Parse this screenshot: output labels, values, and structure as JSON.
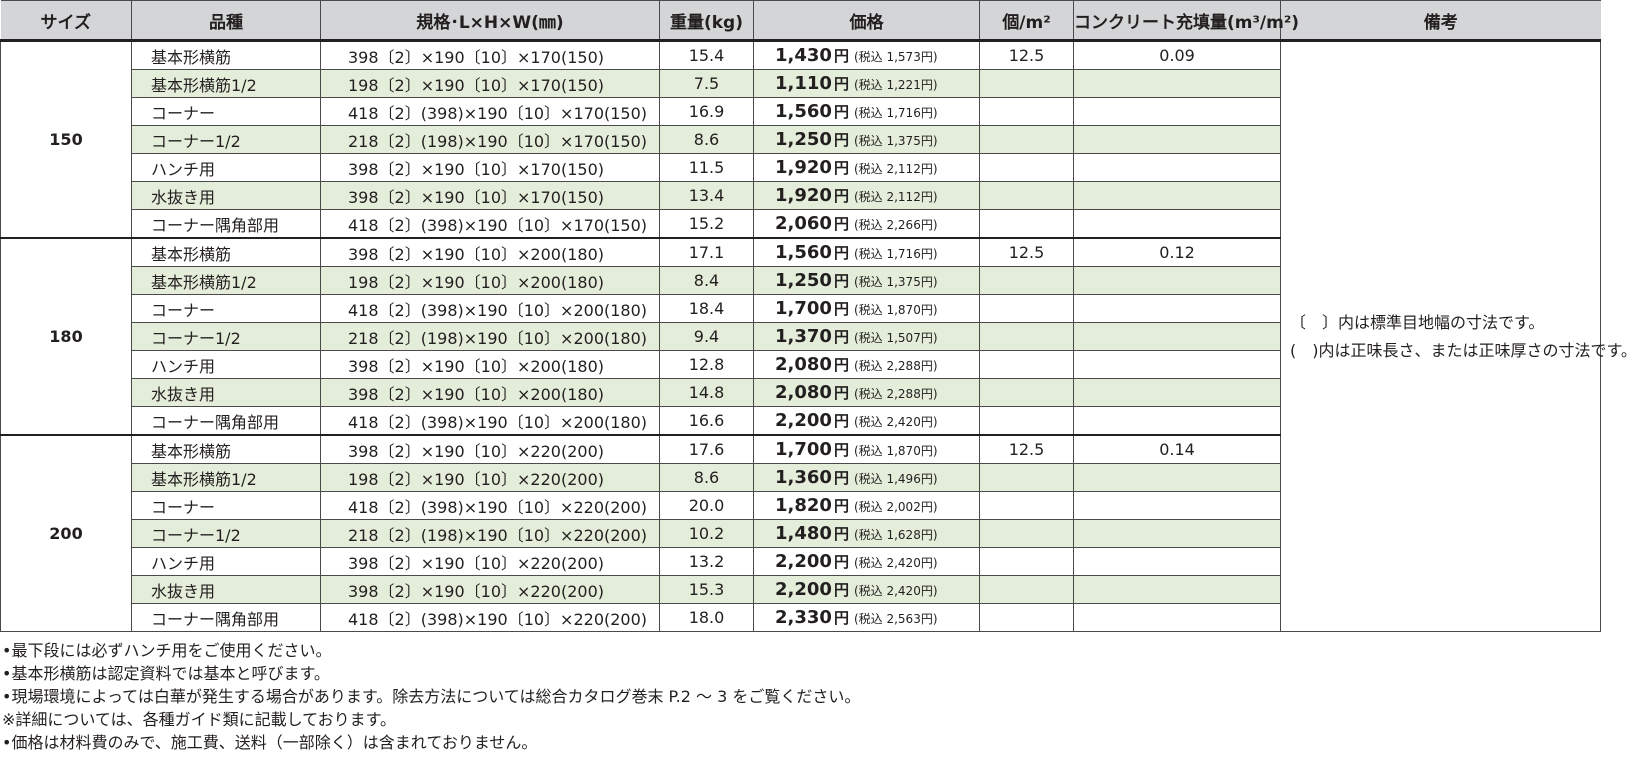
{
  "headers": {
    "size": "サイズ",
    "name": "品種",
    "spec": "規格･L×H×W(㎜)",
    "weight": "重量(kg)",
    "price": "価格",
    "per_m2": "個/m²",
    "concrete": "コンクリート充填量(m³/m²)",
    "remarks": "備考"
  },
  "currency_unit": "円",
  "tax_prefix": "(税込",
  "tax_suffix": "円)",
  "groups": [
    {
      "size": "150",
      "rows": [
        {
          "name": "基本形横筋",
          "spec": "398〔2〕×190〔10〕×170(150)",
          "weight": "15.4",
          "price": "1,430",
          "tax": "1,573",
          "per_m2": "12.5",
          "concrete": "0.09"
        },
        {
          "name": "基本形横筋1/2",
          "spec": "198〔2〕×190〔10〕×170(150)",
          "weight": "7.5",
          "price": "1,110",
          "tax": "1,221",
          "per_m2": "",
          "concrete": ""
        },
        {
          "name": "コーナー",
          "spec": "418〔2〕(398)×190〔10〕×170(150)",
          "weight": "16.9",
          "price": "1,560",
          "tax": "1,716",
          "per_m2": "",
          "concrete": ""
        },
        {
          "name": "コーナー1/2",
          "spec": "218〔2〕(198)×190〔10〕×170(150)",
          "weight": "8.6",
          "price": "1,250",
          "tax": "1,375",
          "per_m2": "",
          "concrete": ""
        },
        {
          "name": "ハンチ用",
          "spec": "398〔2〕×190〔10〕×170(150)",
          "weight": "11.5",
          "price": "1,920",
          "tax": "2,112",
          "per_m2": "",
          "concrete": ""
        },
        {
          "name": "水抜き用",
          "spec": "398〔2〕×190〔10〕×170(150)",
          "weight": "13.4",
          "price": "1,920",
          "tax": "2,112",
          "per_m2": "",
          "concrete": ""
        },
        {
          "name": "コーナー隅角部用",
          "spec": "418〔2〕(398)×190〔10〕×170(150)",
          "weight": "15.2",
          "price": "2,060",
          "tax": "2,266",
          "per_m2": "",
          "concrete": ""
        }
      ]
    },
    {
      "size": "180",
      "rows": [
        {
          "name": "基本形横筋",
          "spec": "398〔2〕×190〔10〕×200(180)",
          "weight": "17.1",
          "price": "1,560",
          "tax": "1,716",
          "per_m2": "12.5",
          "concrete": "0.12"
        },
        {
          "name": "基本形横筋1/2",
          "spec": "198〔2〕×190〔10〕×200(180)",
          "weight": "8.4",
          "price": "1,250",
          "tax": "1,375",
          "per_m2": "",
          "concrete": ""
        },
        {
          "name": "コーナー",
          "spec": "418〔2〕(398)×190〔10〕×200(180)",
          "weight": "18.4",
          "price": "1,700",
          "tax": "1,870",
          "per_m2": "",
          "concrete": ""
        },
        {
          "name": "コーナー1/2",
          "spec": "218〔2〕(198)×190〔10〕×200(180)",
          "weight": "9.4",
          "price": "1,370",
          "tax": "1,507",
          "per_m2": "",
          "concrete": ""
        },
        {
          "name": "ハンチ用",
          "spec": "398〔2〕×190〔10〕×200(180)",
          "weight": "12.8",
          "price": "2,080",
          "tax": "2,288",
          "per_m2": "",
          "concrete": ""
        },
        {
          "name": "水抜き用",
          "spec": "398〔2〕×190〔10〕×200(180)",
          "weight": "14.8",
          "price": "2,080",
          "tax": "2,288",
          "per_m2": "",
          "concrete": ""
        },
        {
          "name": "コーナー隅角部用",
          "spec": "418〔2〕(398)×190〔10〕×200(180)",
          "weight": "16.6",
          "price": "2,200",
          "tax": "2,420",
          "per_m2": "",
          "concrete": ""
        }
      ]
    },
    {
      "size": "200",
      "rows": [
        {
          "name": "基本形横筋",
          "spec": "398〔2〕×190〔10〕×220(200)",
          "weight": "17.6",
          "price": "1,700",
          "tax": "1,870",
          "per_m2": "12.5",
          "concrete": "0.14"
        },
        {
          "name": "基本形横筋1/2",
          "spec": "198〔2〕×190〔10〕×220(200)",
          "weight": "8.6",
          "price": "1,360",
          "tax": "1,496",
          "per_m2": "",
          "concrete": ""
        },
        {
          "name": "コーナー",
          "spec": "418〔2〕(398)×190〔10〕×220(200)",
          "weight": "20.0",
          "price": "1,820",
          "tax": "2,002",
          "per_m2": "",
          "concrete": ""
        },
        {
          "name": "コーナー1/2",
          "spec": "218〔2〕(198)×190〔10〕×220(200)",
          "weight": "10.2",
          "price": "1,480",
          "tax": "1,628",
          "per_m2": "",
          "concrete": ""
        },
        {
          "name": "ハンチ用",
          "spec": "398〔2〕×190〔10〕×220(200)",
          "weight": "13.2",
          "price": "2,200",
          "tax": "2,420",
          "per_m2": "",
          "concrete": ""
        },
        {
          "name": "水抜き用",
          "spec": "398〔2〕×190〔10〕×220(200)",
          "weight": "15.3",
          "price": "2,200",
          "tax": "2,420",
          "per_m2": "",
          "concrete": ""
        },
        {
          "name": "コーナー隅角部用",
          "spec": "418〔2〕(398)×190〔10〕×220(200)",
          "weight": "18.0",
          "price": "2,330",
          "tax": "2,563",
          "per_m2": "",
          "concrete": ""
        }
      ]
    }
  ],
  "remarks": [
    "〔　〕内は標準目地幅の寸法です。",
    "(　)内は正味長さ、または正味厚さの寸法です。"
  ],
  "notes": [
    "•最下段には必ずハンチ用をご使用ください。",
    "•基本形横筋は認定資料では基本と呼びます。",
    "•現場環境によっては白華が発生する場合があります。除去方法については総合カタログ巻末 P.2 ～ 3 をご覧ください。",
    "※詳細については、各種ガイド類に記載しております。",
    "•価格は材料費のみで、施工費、送料（一部除く）は含まれておりません。"
  ],
  "colors": {
    "header_bg": "#d4d5d6",
    "row_tint": "#e3edd9",
    "text": "#231f20",
    "border": "#4a4a4a"
  }
}
